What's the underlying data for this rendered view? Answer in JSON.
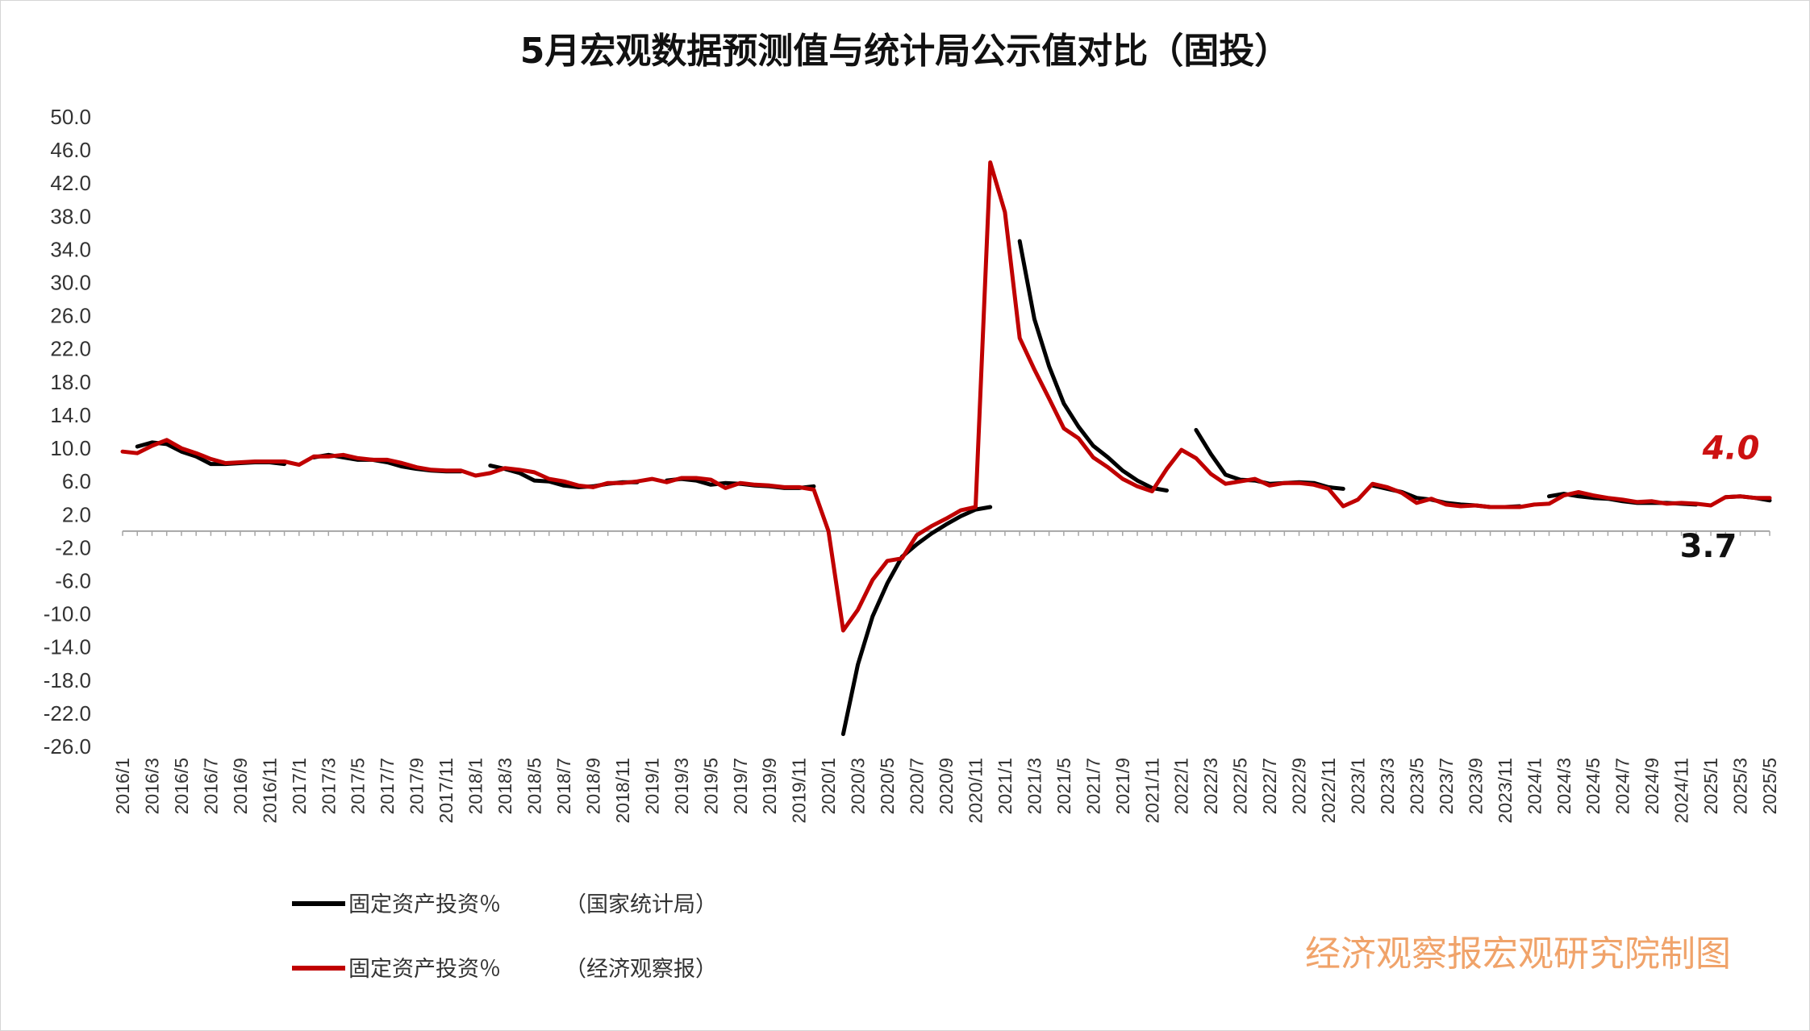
{
  "chart_data": {
    "type": "line",
    "title": "5月宏观数据预测值与统计局公示值对比（固投）",
    "ylim": [
      -26,
      50
    ],
    "yticks": [
      "50.0",
      "46.0",
      "42.0",
      "38.0",
      "34.0",
      "30.0",
      "26.0",
      "22.0",
      "18.0",
      "14.0",
      "10.0",
      "6.0",
      "2.0",
      "-2.0",
      "-6.0",
      "-10.0",
      "-14.0",
      "-18.0",
      "-22.0",
      "-26.0"
    ],
    "x": [
      "2016/1",
      "2016/2",
      "2016/3",
      "2016/4",
      "2016/5",
      "2016/6",
      "2016/7",
      "2016/8",
      "2016/9",
      "2016/10",
      "2016/11",
      "2016/12",
      "2017/1",
      "2017/2",
      "2017/3",
      "2017/4",
      "2017/5",
      "2017/6",
      "2017/7",
      "2017/8",
      "2017/9",
      "2017/10",
      "2017/11",
      "2017/12",
      "2018/1",
      "2018/2",
      "2018/3",
      "2018/4",
      "2018/5",
      "2018/6",
      "2018/7",
      "2018/8",
      "2018/9",
      "2018/10",
      "2018/11",
      "2018/12",
      "2019/1",
      "2019/2",
      "2019/3",
      "2019/4",
      "2019/5",
      "2019/6",
      "2019/7",
      "2019/8",
      "2019/9",
      "2019/10",
      "2019/11",
      "2019/12",
      "2020/1",
      "2020/2",
      "2020/3",
      "2020/4",
      "2020/5",
      "2020/6",
      "2020/7",
      "2020/8",
      "2020/9",
      "2020/10",
      "2020/11",
      "2020/12",
      "2021/1",
      "2021/2",
      "2021/3",
      "2021/4",
      "2021/5",
      "2021/6",
      "2021/7",
      "2021/8",
      "2021/9",
      "2021/10",
      "2021/11",
      "2021/12",
      "2022/1",
      "2022/2",
      "2022/3",
      "2022/4",
      "2022/5",
      "2022/6",
      "2022/7",
      "2022/8",
      "2022/9",
      "2022/10",
      "2022/11",
      "2022/12",
      "2023/1",
      "2023/2",
      "2023/3",
      "2023/4",
      "2023/5",
      "2023/6",
      "2023/7",
      "2023/8",
      "2023/9",
      "2023/10",
      "2023/11",
      "2023/12",
      "2024/1",
      "2024/2",
      "2024/3",
      "2024/4",
      "2024/5",
      "2024/6",
      "2024/7",
      "2024/8",
      "2024/9",
      "2024/10",
      "2024/11",
      "2024/12",
      "2025/1",
      "2025/2",
      "2025/3",
      "2025/4",
      "2025/5"
    ],
    "xtick_labels": [
      "2016/1",
      "2016/3",
      "2016/5",
      "2016/7",
      "2016/9",
      "2016/11",
      "2017/1",
      "2017/3",
      "2017/5",
      "2017/7",
      "2017/9",
      "2017/11",
      "2018/1",
      "2018/3",
      "2018/5",
      "2018/7",
      "2018/9",
      "2018/11",
      "2019/1",
      "2019/3",
      "2019/5",
      "2019/7",
      "2019/9",
      "2019/11",
      "2020/1",
      "2020/3",
      "2020/5",
      "2020/7",
      "2020/9",
      "2020/11",
      "2021/1",
      "2021/3",
      "2021/5",
      "2021/7",
      "2021/9",
      "2021/11",
      "2022/1",
      "2022/3",
      "2022/5",
      "2022/7",
      "2022/9",
      "2022/11",
      "2023/1",
      "2023/3",
      "2023/5",
      "2023/7",
      "2023/9",
      "2023/11",
      "2024/1",
      "2024/3",
      "2024/5",
      "2024/7",
      "2024/9",
      "2024/11",
      "2025/1",
      "2025/3",
      "2025/5"
    ],
    "series": [
      {
        "name": "固定资产投资％",
        "source": "（国家统计局）",
        "color": "#000000",
        "values": [
          null,
          10.2,
          10.7,
          10.5,
          9.6,
          9.0,
          8.1,
          8.1,
          8.2,
          8.3,
          8.3,
          8.1,
          null,
          8.9,
          9.2,
          8.9,
          8.6,
          8.6,
          8.3,
          7.8,
          7.5,
          7.3,
          7.2,
          7.2,
          null,
          7.9,
          7.5,
          7.0,
          6.1,
          6.0,
          5.5,
          5.3,
          5.4,
          5.7,
          5.9,
          5.9,
          null,
          6.1,
          6.3,
          6.1,
          5.6,
          5.8,
          5.7,
          5.5,
          5.4,
          5.2,
          5.2,
          5.4,
          null,
          -24.5,
          -16.1,
          -10.3,
          -6.3,
          -3.1,
          -1.6,
          -0.3,
          0.8,
          1.8,
          2.6,
          2.9,
          null,
          35.0,
          25.6,
          19.9,
          15.4,
          12.6,
          10.3,
          8.9,
          7.3,
          6.1,
          5.2,
          4.9,
          null,
          12.2,
          9.3,
          6.8,
          6.2,
          6.1,
          5.7,
          5.8,
          5.9,
          5.8,
          5.3,
          5.1,
          null,
          5.5,
          5.1,
          4.7,
          4.0,
          3.8,
          3.4,
          3.2,
          3.1,
          2.9,
          2.9,
          3.0,
          null,
          4.2,
          4.5,
          4.2,
          4.0,
          3.9,
          3.6,
          3.4,
          3.4,
          3.4,
          3.3,
          3.2,
          null,
          4.1,
          4.2,
          4.0,
          3.7
        ]
      },
      {
        "name": "固定资产投资％",
        "source": "（经济观察报）",
        "color": "#c00000",
        "values": [
          9.6,
          9.4,
          10.3,
          11.0,
          10.0,
          9.4,
          8.7,
          8.2,
          8.3,
          8.4,
          8.4,
          8.4,
          8.0,
          9.0,
          9.0,
          9.2,
          8.8,
          8.6,
          8.6,
          8.2,
          7.7,
          7.4,
          7.3,
          7.3,
          6.7,
          7.0,
          7.6,
          7.4,
          7.1,
          6.3,
          6.0,
          5.5,
          5.3,
          5.8,
          5.8,
          6.0,
          6.3,
          5.9,
          6.4,
          6.4,
          6.2,
          5.2,
          5.8,
          5.6,
          5.5,
          5.3,
          5.3,
          5.0,
          0.0,
          -12.0,
          -9.5,
          -5.9,
          -3.6,
          -3.3,
          -0.5,
          0.6,
          1.5,
          2.5,
          2.9,
          44.5,
          38.5,
          23.3,
          19.5,
          16.0,
          12.4,
          11.2,
          8.9,
          7.7,
          6.3,
          5.4,
          4.8,
          7.5,
          9.8,
          8.8,
          6.9,
          5.7,
          6.0,
          6.3,
          5.5,
          5.8,
          5.8,
          5.6,
          5.1,
          3.0,
          3.8,
          5.7,
          5.3,
          4.6,
          3.4,
          3.9,
          3.2,
          3.0,
          3.1,
          2.9,
          2.9,
          2.9,
          3.2,
          3.3,
          4.3,
          4.7,
          4.3,
          4.0,
          3.8,
          3.5,
          3.6,
          3.3,
          3.4,
          3.3,
          3.1,
          4.1,
          4.2,
          4.0,
          4.0
        ]
      }
    ],
    "annotations": [
      {
        "text": "4.0",
        "series": 1,
        "color": "#c00000"
      },
      {
        "text": "3.7",
        "series": 0,
        "color": "#000000"
      }
    ],
    "legend": "bottom-left",
    "grid": false
  },
  "credit": "经济观察报宏观研究院制图"
}
